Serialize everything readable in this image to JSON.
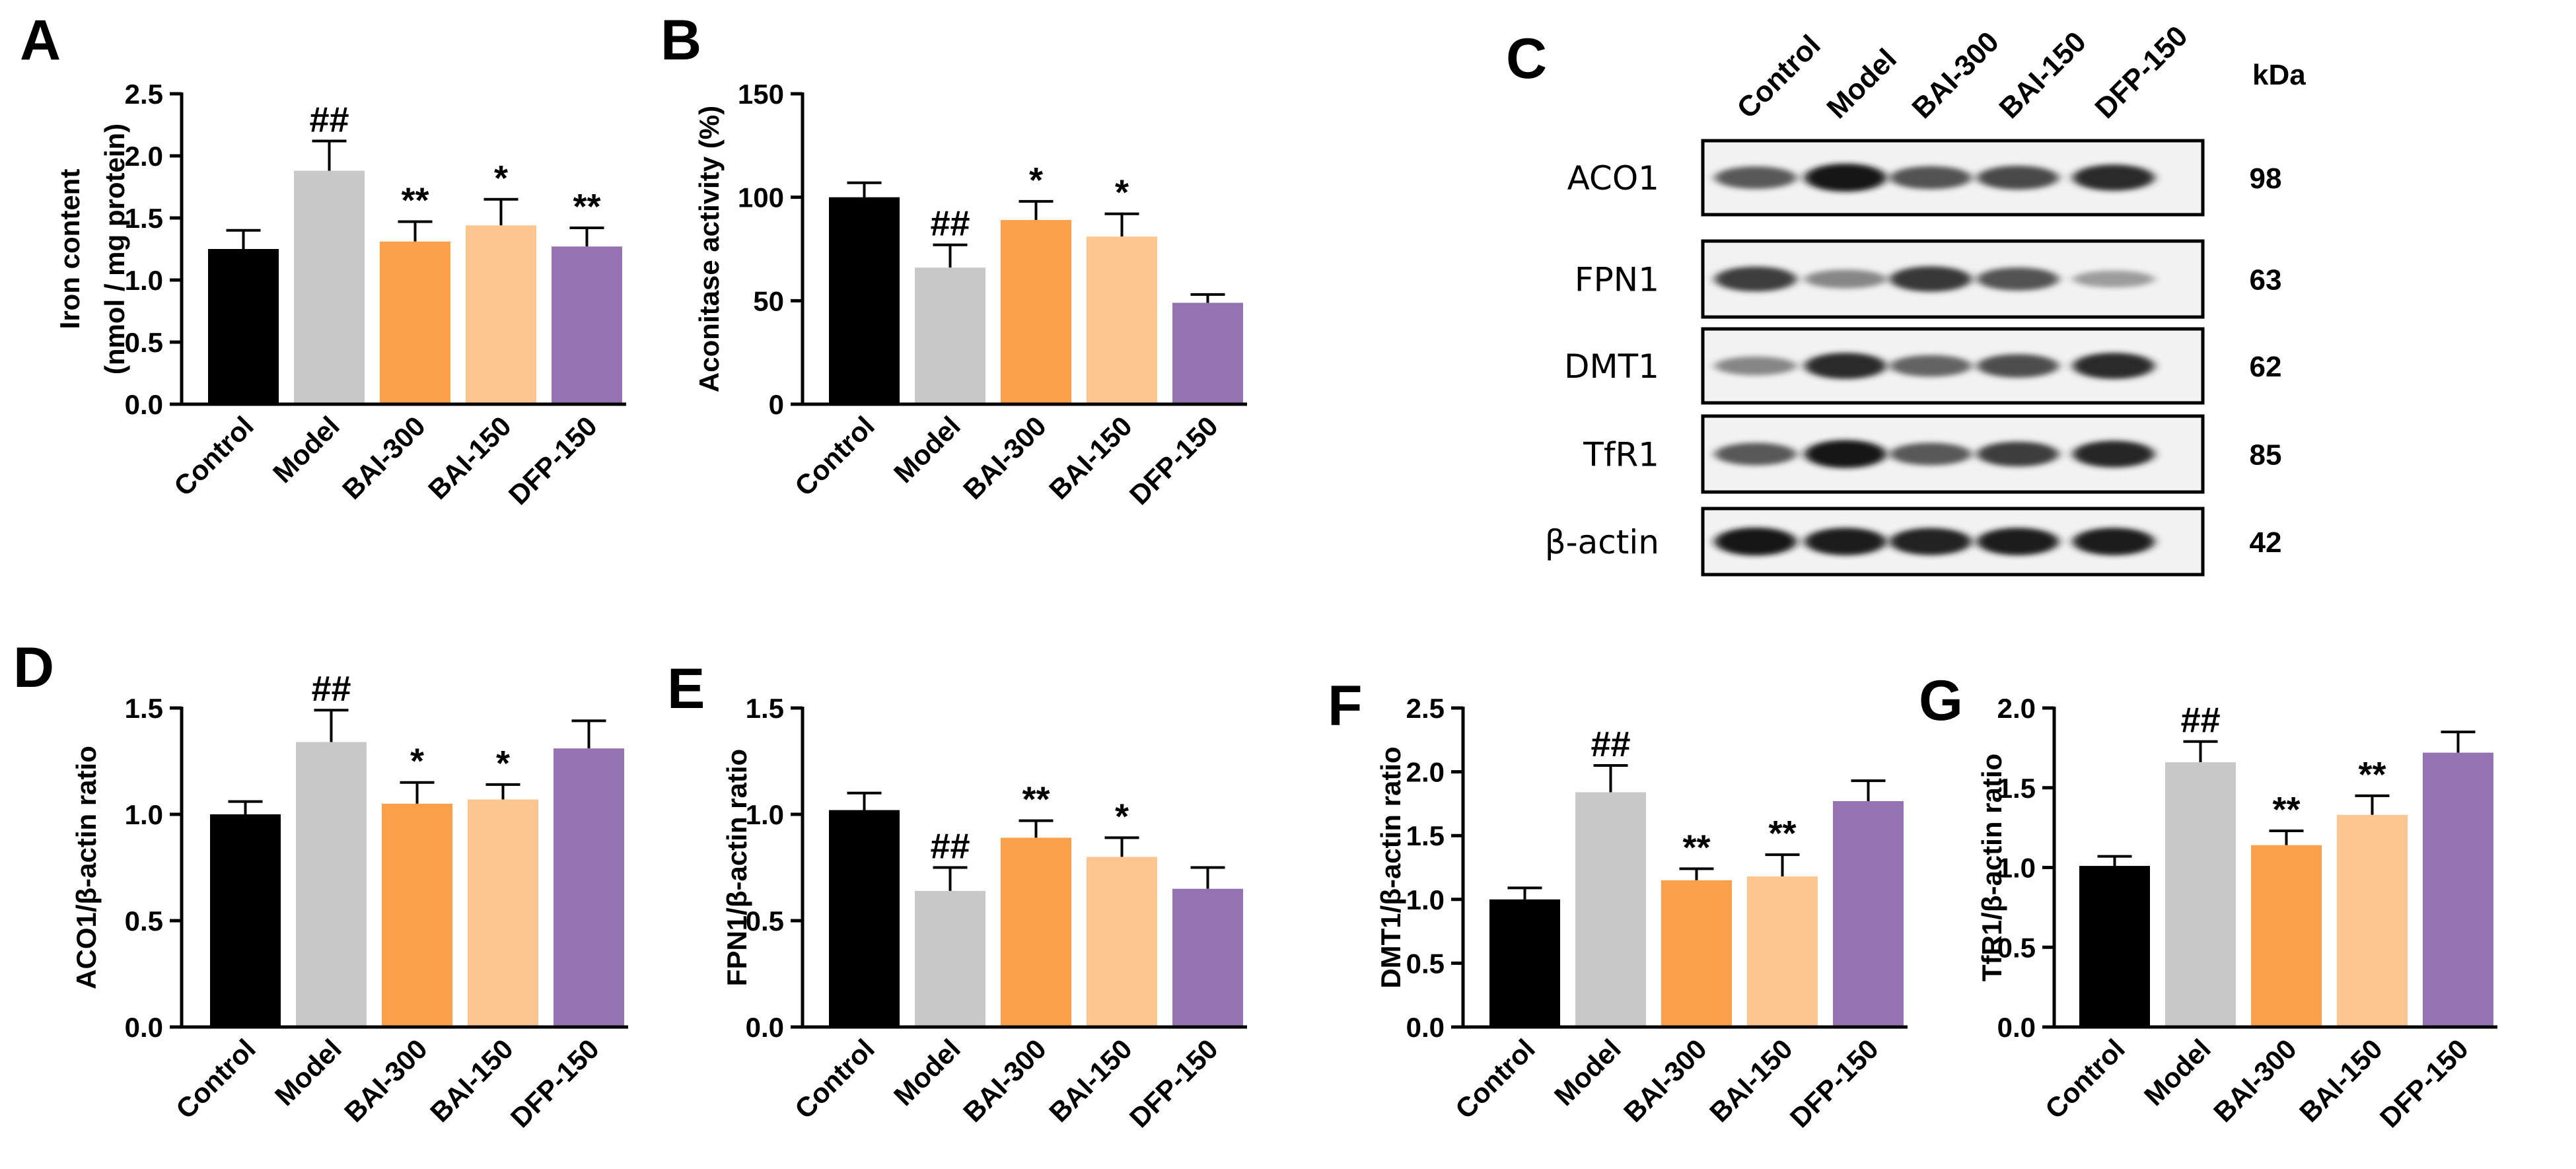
{
  "chart_data": [
    {
      "panel": "A",
      "type": "bar",
      "ylabel": [
        "Iron content",
        "(nmol / mg protein)"
      ],
      "categories": [
        "Control",
        "Model",
        "BAI-300",
        "BAI-150",
        "DFP-150"
      ],
      "values": [
        1.25,
        1.88,
        1.31,
        1.44,
        1.27
      ],
      "errors": [
        0.15,
        0.24,
        0.16,
        0.21,
        0.15
      ],
      "significance": [
        "",
        "##",
        "**",
        "*",
        "**"
      ],
      "ylim": [
        0,
        2.5
      ],
      "yticks": [
        "0.0",
        "0.5",
        "1.0",
        "1.5",
        "2.0",
        "2.5"
      ]
    },
    {
      "panel": "B",
      "type": "bar",
      "ylabel": [
        "Aconitase activity (%)"
      ],
      "categories": [
        "Control",
        "Model",
        "BAI-300",
        "BAI-150",
        "DFP-150"
      ],
      "values": [
        100,
        66,
        89,
        81,
        49
      ],
      "errors": [
        7,
        11,
        9,
        11,
        4
      ],
      "significance": [
        "",
        "##",
        "*",
        "*",
        ""
      ],
      "ylim": [
        0,
        150
      ],
      "yticks": [
        "0",
        "50",
        "100",
        "150"
      ]
    },
    {
      "panel": "D",
      "type": "bar",
      "ylabel": [
        "ACO1/β-actin ratio"
      ],
      "categories": [
        "Control",
        "Model",
        "BAI-300",
        "BAI-150",
        "DFP-150"
      ],
      "values": [
        1.0,
        1.34,
        1.05,
        1.07,
        1.31
      ],
      "errors": [
        0.06,
        0.15,
        0.1,
        0.07,
        0.13
      ],
      "significance": [
        "",
        "##",
        "*",
        "*",
        ""
      ],
      "ylim": [
        0,
        1.5
      ],
      "yticks": [
        "0.0",
        "0.5",
        "1.0",
        "1.5"
      ]
    },
    {
      "panel": "E",
      "type": "bar",
      "ylabel": [
        "FPN1/β-actin ratio"
      ],
      "categories": [
        "Control",
        "Model",
        "BAI-300",
        "BAI-150",
        "DFP-150"
      ],
      "values": [
        1.02,
        0.64,
        0.89,
        0.8,
        0.65
      ],
      "errors": [
        0.08,
        0.11,
        0.08,
        0.09,
        0.1
      ],
      "significance": [
        "",
        "##",
        "**",
        "*",
        ""
      ],
      "ylim": [
        0,
        1.5
      ],
      "yticks": [
        "0.0",
        "0.5",
        "1.0",
        "1.5"
      ]
    },
    {
      "panel": "F",
      "type": "bar",
      "ylabel": [
        "DMT1/β-actin ratio"
      ],
      "categories": [
        "Control",
        "Model",
        "BAI-300",
        "BAI-150",
        "DFP-150"
      ],
      "values": [
        1.0,
        1.84,
        1.15,
        1.18,
        1.77
      ],
      "errors": [
        0.09,
        0.21,
        0.09,
        0.17,
        0.16
      ],
      "significance": [
        "",
        "##",
        "**",
        "**",
        ""
      ],
      "ylim": [
        0,
        2.5
      ],
      "yticks": [
        "0.0",
        "0.5",
        "1.0",
        "1.5",
        "2.0",
        "2.5"
      ]
    },
    {
      "panel": "G",
      "type": "bar",
      "ylabel": [
        "TfR1/β-actin ratio"
      ],
      "categories": [
        "Control",
        "Model",
        "BAI-300",
        "BAI-150",
        "DFP-150"
      ],
      "values": [
        1.01,
        1.66,
        1.14,
        1.33,
        1.72
      ],
      "errors": [
        0.06,
        0.13,
        0.09,
        0.12,
        0.13
      ],
      "significance": [
        "",
        "##",
        "**",
        "**",
        ""
      ],
      "ylim": [
        0,
        2.0
      ],
      "yticks": [
        "0.0",
        "0.5",
        "1.0",
        "1.5",
        "2.0"
      ]
    }
  ],
  "bar_colors": [
    "#000000",
    "#c8c8c8",
    "#fba04a",
    "#fdc58f",
    "#9573b2"
  ],
  "blot": {
    "panel": "C",
    "lanes": [
      "Control",
      "Model",
      "BAI-300",
      "BAI-150",
      "DFP-150"
    ],
    "kda_header": "kDa",
    "rows": [
      {
        "label": "ACO1",
        "kda": "98",
        "intensity": [
          0.65,
          0.95,
          0.68,
          0.72,
          0.85
        ]
      },
      {
        "label": "FPN1",
        "kda": "63",
        "intensity": [
          0.78,
          0.45,
          0.8,
          0.68,
          0.35
        ]
      },
      {
        "label": "DMT1",
        "kda": "62",
        "intensity": [
          0.45,
          0.85,
          0.6,
          0.7,
          0.85
        ]
      },
      {
        "label": "TfR1",
        "kda": "85",
        "intensity": [
          0.65,
          0.95,
          0.65,
          0.78,
          0.88
        ]
      },
      {
        "label": "β-actin",
        "kda": "42",
        "intensity": [
          0.95,
          0.92,
          0.9,
          0.92,
          0.92
        ]
      }
    ]
  }
}
